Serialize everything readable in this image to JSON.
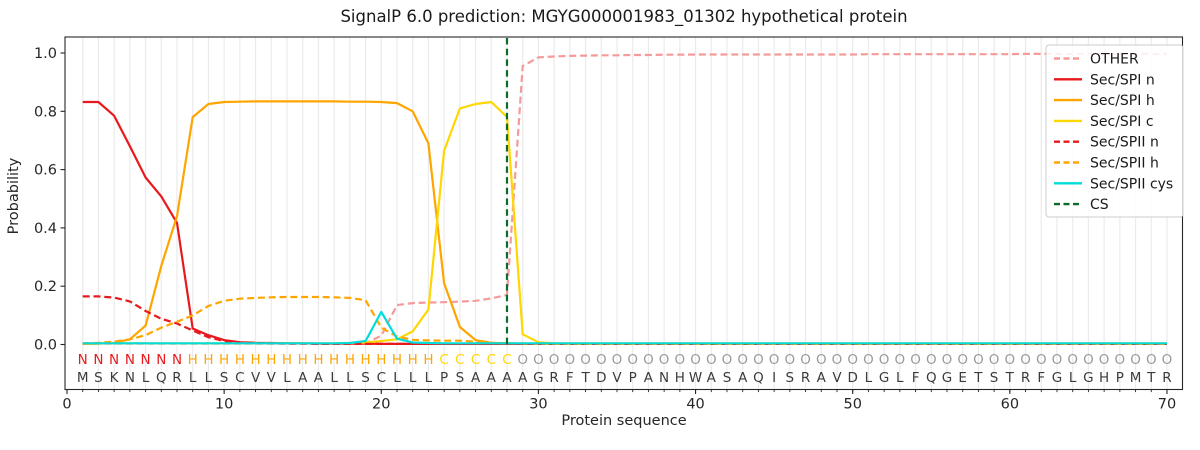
{
  "figure": {
    "title": "SignalP 6.0 prediction: MGYG000001983_01302 hypothetical protein",
    "xlabel": "Protein sequence",
    "ylabel": "Probability"
  },
  "chart_data": {
    "type": "line",
    "title": "SignalP 6.0 prediction: MGYG000001983_01302 hypothetical protein",
    "xlabel": "Protein sequence",
    "ylabel": "Probability",
    "x_start": 1,
    "x_end": 70,
    "xlim": [
      -0.2,
      71
    ],
    "ylim": [
      -0.16,
      1.05
    ],
    "xticks": [
      0,
      10,
      20,
      30,
      40,
      50,
      60,
      70
    ],
    "yticks": [
      "0.0",
      "0.2",
      "0.4",
      "0.6",
      "0.8",
      "1.0"
    ],
    "grid": "vertical-per-residue",
    "legend_position": "upper right",
    "series": [
      {
        "name": "OTHER",
        "color": "#f59a9a",
        "style": "dashed",
        "values": [
          0.003,
          0.003,
          0.003,
          0.003,
          0.003,
          0.003,
          0.003,
          0.003,
          0.003,
          0.003,
          0.003,
          0.003,
          0.003,
          0.003,
          0.003,
          0.003,
          0.003,
          0.003,
          0.005,
          0.03,
          0.135,
          0.142,
          0.144,
          0.145,
          0.147,
          0.15,
          0.158,
          0.17,
          0.955,
          0.985,
          0.988,
          0.99,
          0.991,
          0.992,
          0.992,
          0.993,
          0.993,
          0.994,
          0.994,
          0.995,
          0.995,
          0.995,
          0.995,
          0.995,
          0.995,
          0.995,
          0.995,
          0.995,
          0.995,
          0.995,
          0.996,
          0.996,
          0.996,
          0.996,
          0.996,
          0.996,
          0.996,
          0.996,
          0.996,
          0.996,
          0.997,
          0.997,
          0.997,
          0.997,
          0.997,
          0.997,
          0.997,
          0.997,
          0.997,
          0.997
        ]
      },
      {
        "name": "Sec/SPI n",
        "color": "#e8191c",
        "style": "solid",
        "values": [
          0.832,
          0.832,
          0.785,
          0.68,
          0.573,
          0.508,
          0.417,
          0.055,
          0.032,
          0.015,
          0.008,
          0.006,
          0.005,
          0.004,
          0.004,
          0.003,
          0.003,
          0.003,
          0.003,
          0.002,
          0.002,
          0.002,
          0.002,
          0.002,
          0.002,
          0.002,
          0.002,
          0.002,
          0.002,
          0.002,
          0.002,
          0.002,
          0.002,
          0.002,
          0.002,
          0.002,
          0.002,
          0.002,
          0.002,
          0.002,
          0.002,
          0.002,
          0.002,
          0.002,
          0.002,
          0.002,
          0.002,
          0.002,
          0.002,
          0.002,
          0.002,
          0.002,
          0.002,
          0.002,
          0.002,
          0.002,
          0.002,
          0.002,
          0.002,
          0.002,
          0.002,
          0.002,
          0.002,
          0.002,
          0.002,
          0.002,
          0.002,
          0.002,
          0.002,
          0.002
        ]
      },
      {
        "name": "Sec/SPI h",
        "color": "#ffa500",
        "style": "solid",
        "values": [
          0.002,
          0.003,
          0.006,
          0.018,
          0.065,
          0.27,
          0.44,
          0.78,
          0.825,
          0.832,
          0.833,
          0.834,
          0.834,
          0.834,
          0.834,
          0.834,
          0.834,
          0.833,
          0.833,
          0.832,
          0.828,
          0.8,
          0.69,
          0.21,
          0.06,
          0.015,
          0.006,
          0.004,
          0.003,
          0.002,
          0.002,
          0.002,
          0.002,
          0.002,
          0.002,
          0.002,
          0.002,
          0.002,
          0.002,
          0.002,
          0.002,
          0.002,
          0.002,
          0.002,
          0.002,
          0.002,
          0.002,
          0.002,
          0.002,
          0.002,
          0.002,
          0.002,
          0.002,
          0.002,
          0.002,
          0.002,
          0.002,
          0.002,
          0.002,
          0.002,
          0.002,
          0.002,
          0.002,
          0.002,
          0.002,
          0.002,
          0.002,
          0.002,
          0.002,
          0.002
        ]
      },
      {
        "name": "Sec/SPI c",
        "color": "#ffd700",
        "style": "solid",
        "values": [
          0.004,
          0.004,
          0.004,
          0.004,
          0.004,
          0.004,
          0.004,
          0.004,
          0.004,
          0.004,
          0.004,
          0.004,
          0.004,
          0.004,
          0.004,
          0.004,
          0.004,
          0.005,
          0.007,
          0.012,
          0.018,
          0.045,
          0.12,
          0.665,
          0.81,
          0.825,
          0.832,
          0.78,
          0.035,
          0.008,
          0.004,
          0.004,
          0.004,
          0.004,
          0.004,
          0.004,
          0.004,
          0.004,
          0.004,
          0.004,
          0.004,
          0.004,
          0.004,
          0.004,
          0.004,
          0.004,
          0.004,
          0.004,
          0.004,
          0.004,
          0.004,
          0.004,
          0.004,
          0.004,
          0.004,
          0.004,
          0.004,
          0.004,
          0.004,
          0.004,
          0.004,
          0.004,
          0.004,
          0.004,
          0.004,
          0.004,
          0.004,
          0.004,
          0.004,
          0.004
        ]
      },
      {
        "name": "Sec/SPII n",
        "color": "#e8191c",
        "style": "dashed",
        "values": [
          0.165,
          0.165,
          0.161,
          0.148,
          0.115,
          0.088,
          0.072,
          0.048,
          0.025,
          0.012,
          0.007,
          0.005,
          0.004,
          0.003,
          0.003,
          0.002,
          0.002,
          0.002,
          0.002,
          0.002,
          0.002,
          0.002,
          0.002,
          0.002,
          0.002,
          0.002,
          0.002,
          0.002,
          0.002,
          0.002,
          0.002,
          0.002,
          0.002,
          0.002,
          0.002,
          0.002,
          0.002,
          0.002,
          0.002,
          0.002,
          0.002,
          0.002,
          0.002,
          0.002,
          0.002,
          0.002,
          0.002,
          0.002,
          0.002,
          0.002,
          0.002,
          0.002,
          0.002,
          0.002,
          0.002,
          0.002,
          0.002,
          0.002,
          0.002,
          0.002,
          0.002,
          0.002,
          0.002,
          0.002,
          0.002,
          0.002,
          0.002,
          0.002,
          0.002,
          0.002
        ]
      },
      {
        "name": "Sec/SPII h",
        "color": "#ffa500",
        "style": "dashed",
        "values": [
          0.004,
          0.006,
          0.01,
          0.018,
          0.032,
          0.058,
          0.078,
          0.1,
          0.132,
          0.15,
          0.157,
          0.16,
          0.162,
          0.163,
          0.163,
          0.163,
          0.162,
          0.16,
          0.152,
          0.058,
          0.027,
          0.016,
          0.014,
          0.013,
          0.013,
          0.01,
          0.006,
          0.004,
          0.004,
          0.003,
          0.003,
          0.003,
          0.003,
          0.003,
          0.003,
          0.003,
          0.003,
          0.003,
          0.003,
          0.003,
          0.003,
          0.003,
          0.003,
          0.003,
          0.003,
          0.003,
          0.003,
          0.003,
          0.003,
          0.003,
          0.003,
          0.003,
          0.003,
          0.003,
          0.003,
          0.003,
          0.003,
          0.003,
          0.003,
          0.003,
          0.003,
          0.003,
          0.003,
          0.003,
          0.003,
          0.003,
          0.003,
          0.003,
          0.003,
          0.003
        ]
      },
      {
        "name": "Sec/SPII cys",
        "color": "#00dcdc",
        "style": "solid",
        "values": [
          0.004,
          0.004,
          0.004,
          0.004,
          0.004,
          0.004,
          0.004,
          0.004,
          0.004,
          0.004,
          0.004,
          0.004,
          0.004,
          0.004,
          0.004,
          0.004,
          0.004,
          0.005,
          0.012,
          0.112,
          0.02,
          0.007,
          0.005,
          0.004,
          0.004,
          0.004,
          0.004,
          0.004,
          0.004,
          0.004,
          0.004,
          0.004,
          0.004,
          0.004,
          0.004,
          0.004,
          0.004,
          0.004,
          0.004,
          0.004,
          0.004,
          0.004,
          0.004,
          0.004,
          0.004,
          0.004,
          0.004,
          0.004,
          0.004,
          0.004,
          0.004,
          0.004,
          0.004,
          0.004,
          0.004,
          0.004,
          0.004,
          0.004,
          0.004,
          0.004,
          0.004,
          0.004,
          0.004,
          0.004,
          0.004,
          0.004,
          0.004,
          0.004,
          0.004,
          0.004
        ]
      }
    ],
    "cs_marker": {
      "name": "CS",
      "position": 28,
      "color": "#0c6b2b",
      "style": "dashed"
    },
    "legend": [
      "OTHER",
      "Sec/SPI n",
      "Sec/SPI h",
      "Sec/SPI c",
      "Sec/SPII n",
      "Sec/SPII h",
      "Sec/SPII cys",
      "CS"
    ],
    "sequence": "MSKNLQRLLSCVVLAALLSCLLLPSAAAAGRFTDVPANHWASAQISRAVDLGLFQGETSTRFGLGHPMTR",
    "region_labels": "NNNNNNNHHHHHHHHHHHHHHHHCCCCCOOOOOOOOOOOOOOOOOOOOOOOOOOOOOOOOOOOOOOOOOO",
    "region_colors": {
      "N": "#e8191c",
      "H": "#ffa500",
      "C": "#ffd700",
      "O": "#9a9a9a"
    },
    "sequence_color": "#3b3b3b"
  }
}
